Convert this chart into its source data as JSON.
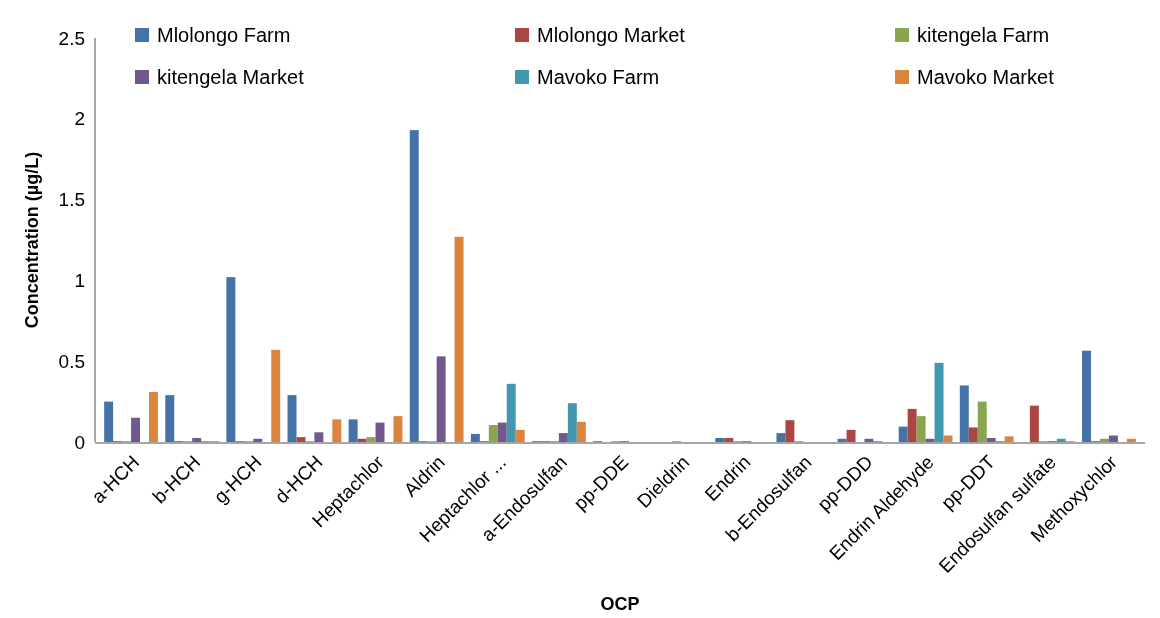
{
  "chart_data": {
    "type": "bar",
    "xlabel": "OCP",
    "ylabel": "Concentration (µg/L)",
    "categories": [
      "a-HCH",
      "b-HCH",
      "g-HCH",
      "d-HCH",
      "Heptachlor",
      "Aldrin",
      "Heptachlor ...",
      "a-Endosulfan",
      "pp-DDE",
      "Dieldrin",
      "Endrin",
      "b-Endosulfan",
      "pp-DDD",
      "Endrin Aldehyde",
      "pp-DDT",
      "Endosulfan sulfate",
      "Methoxychlor"
    ],
    "series": [
      {
        "name": "Mlolongo Farm",
        "color": "#4572a7",
        "values": [
          0.25,
          0.29,
          1.02,
          0.29,
          0.14,
          1.93,
          0.05,
          0.005,
          0.005,
          0,
          0.025,
          0.055,
          0.02,
          0.095,
          0.35,
          0,
          0.565
        ]
      },
      {
        "name": "Mlolongo Market",
        "color": "#aa4643",
        "values": [
          0.005,
          0.005,
          0.005,
          0.03,
          0.02,
          0.005,
          0.005,
          0.005,
          0,
          0,
          0.025,
          0.135,
          0.075,
          0.205,
          0.09,
          0.225,
          0.005
        ]
      },
      {
        "name": "kitengela Farm",
        "color": "#89a54e",
        "values": [
          0.005,
          0.005,
          0.005,
          0.005,
          0.03,
          0.005,
          0.105,
          0.005,
          0.005,
          0.005,
          0.005,
          0.005,
          0,
          0.16,
          0.25,
          0.005,
          0.02
        ]
      },
      {
        "name": "kitengela Market",
        "color": "#71588f",
        "values": [
          0.15,
          0.025,
          0.02,
          0.06,
          0.12,
          0.53,
          0.12,
          0.055,
          0.005,
          0,
          0.005,
          0,
          0.02,
          0.02,
          0.025,
          0.005,
          0.04
        ]
      },
      {
        "name": "Mavoko Farm",
        "color": "#4198af",
        "values": [
          0,
          0.005,
          0,
          0,
          0,
          0,
          0.36,
          0.24,
          0,
          0,
          0,
          0,
          0.005,
          0.49,
          0.005,
          0.02,
          0
        ]
      },
      {
        "name": "Mavoko Market",
        "color": "#db843d",
        "values": [
          0.31,
          0.005,
          0.57,
          0.14,
          0.16,
          1.27,
          0.075,
          0.125,
          0,
          0,
          0,
          0,
          0,
          0.04,
          0.035,
          0.005,
          0.02
        ]
      }
    ],
    "ylim": [
      0,
      2.5
    ],
    "yticks": [
      0,
      0.5,
      1,
      1.5,
      2,
      2.5
    ],
    "legend": "top"
  }
}
